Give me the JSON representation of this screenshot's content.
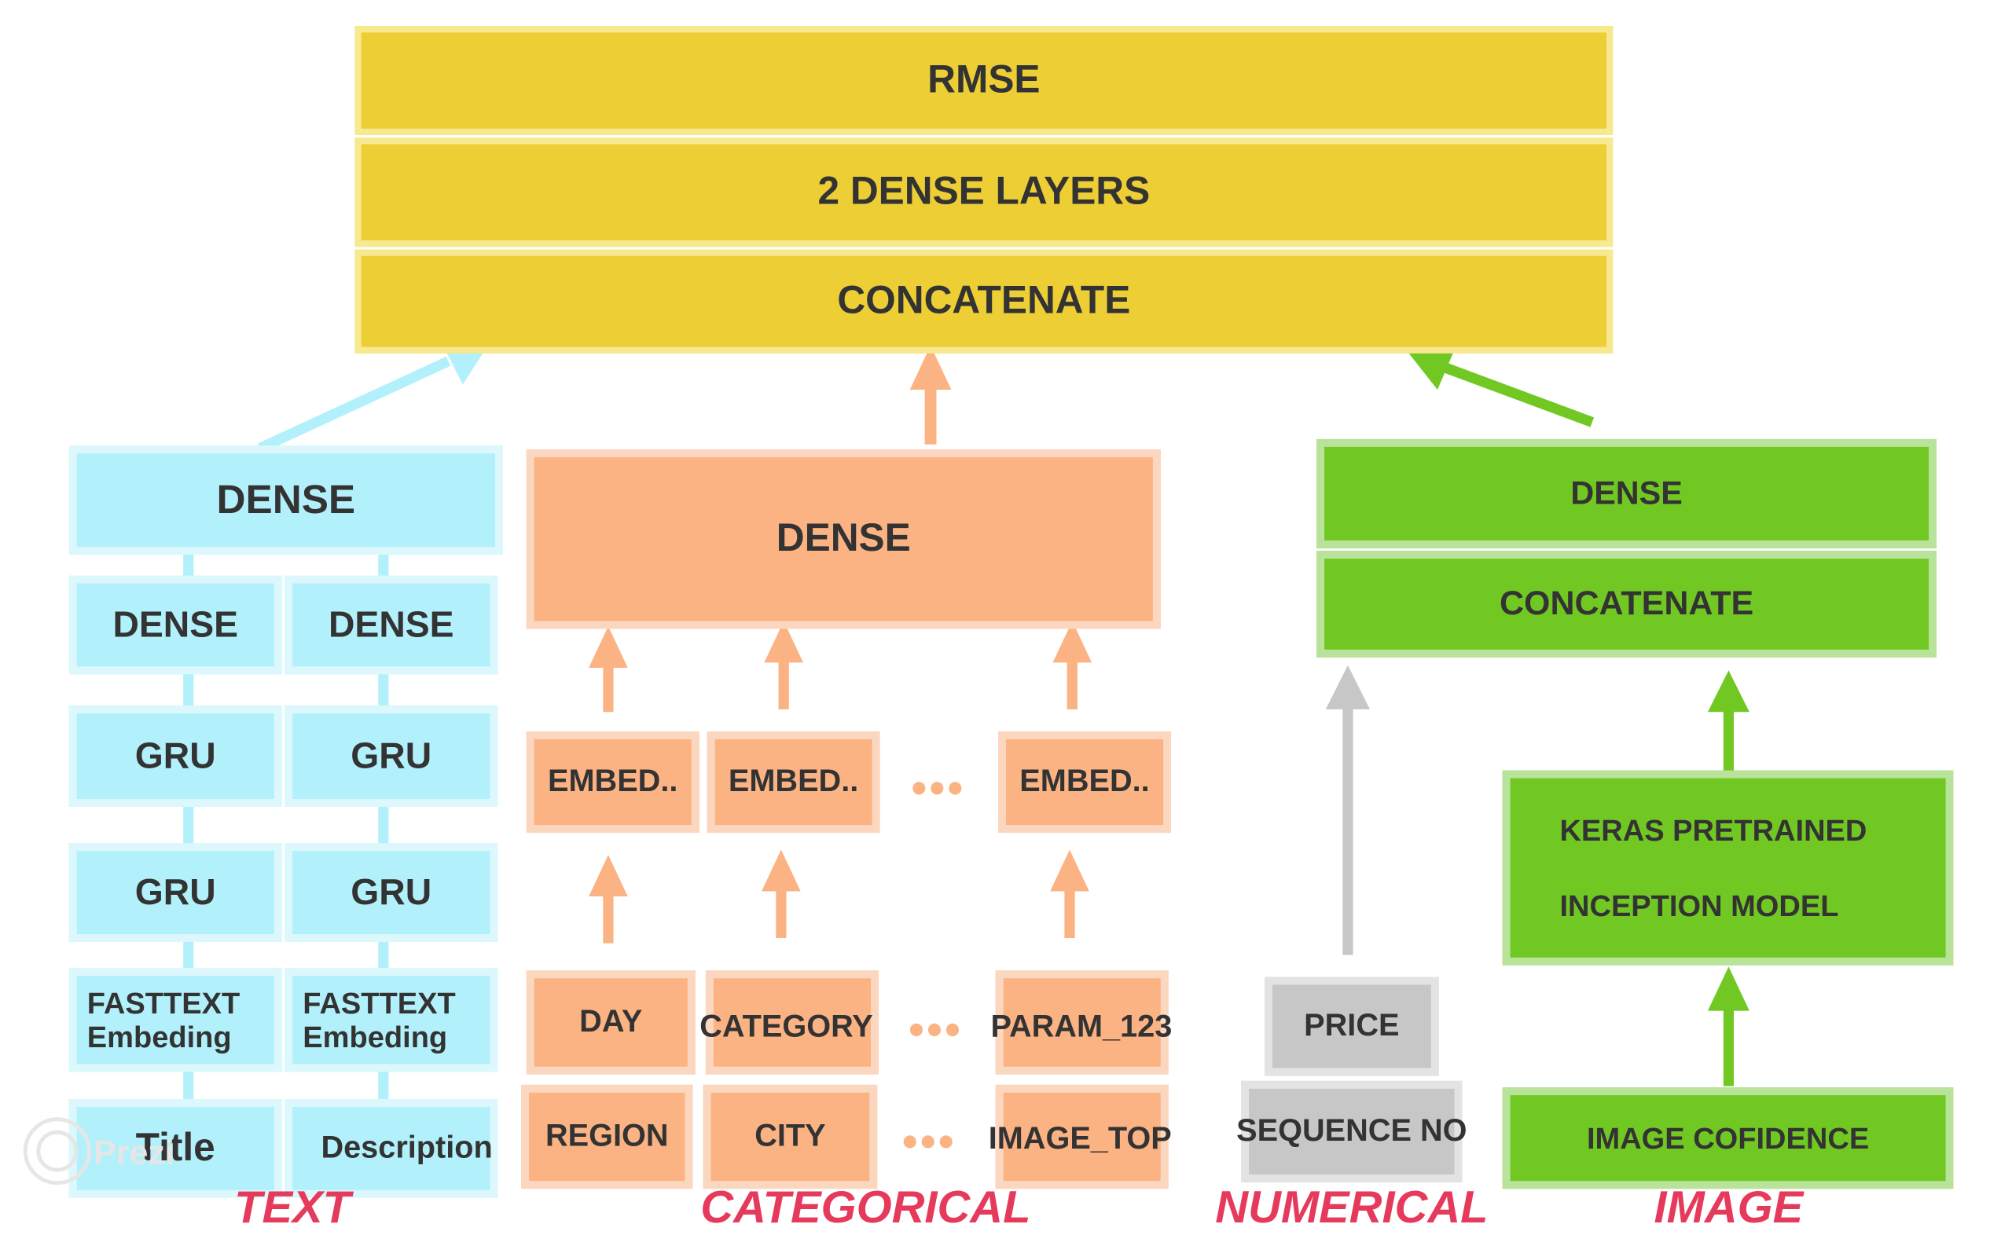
{
  "top_stack": {
    "rmse": "RMSE",
    "dense_layers": "2 DENSE LAYERS",
    "concatenate": "CONCATENATE"
  },
  "text_branch": {
    "dense_top": "DENSE",
    "dense_left": "DENSE",
    "dense_right": "DENSE",
    "gru_1_left": "GRU",
    "gru_1_right": "GRU",
    "gru_2_left": "GRU",
    "gru_2_right": "GRU",
    "fasttext_line1": "FASTTEXT",
    "fasttext_line2": "Embeding",
    "input_left": "Title",
    "input_right": "Description",
    "label": "TEXT"
  },
  "categorical_branch": {
    "dense": "DENSE",
    "embeds": [
      "EMBED..",
      "EMBED..",
      "EMBED.."
    ],
    "row1": [
      "DAY",
      "CATEGORY",
      "PARAM_123"
    ],
    "row2": [
      "REGION",
      "CITY",
      "IMAGE_TOP"
    ],
    "dots": "•••",
    "label": "CATEGORICAL"
  },
  "numerical_branch": {
    "price": "PRICE",
    "sequence": "SEQUENCE NO",
    "label": "NUMERICAL"
  },
  "image_branch": {
    "dense": "DENSE",
    "concatenate": "CONCATENATE",
    "model_line1": "KERAS PRETRAINED",
    "model_line2": "INCEPTION MODEL",
    "confidence": "IMAGE COFIDENCE",
    "label": "IMAGE"
  },
  "watermark": "Prezi",
  "colors": {
    "yellow": "#EECE35",
    "cyan": "#B2F1FB",
    "orange": "#FBB383",
    "green": "#71C823",
    "gray": "#C7C7C7",
    "label": "#E63A5C"
  }
}
